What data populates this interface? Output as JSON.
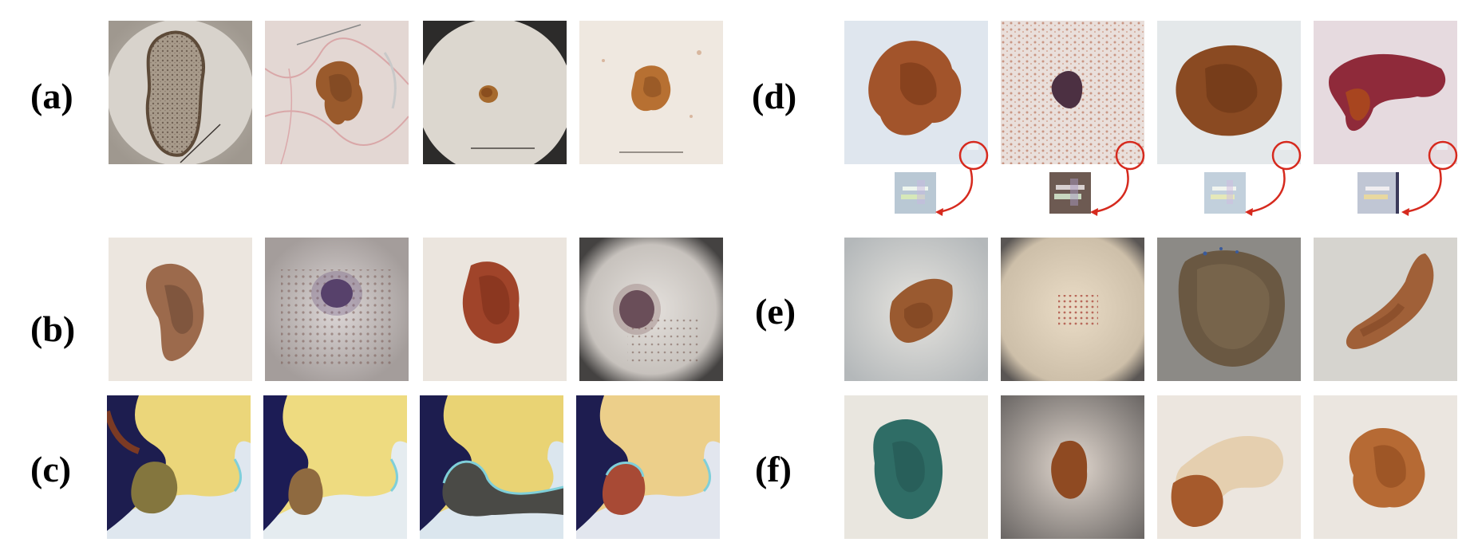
{
  "panels": [
    {
      "id": "a",
      "label": "(a)"
    },
    {
      "id": "b",
      "label": "(b)"
    },
    {
      "id": "c",
      "label": "(c)"
    },
    {
      "id": "d",
      "label": "(d)"
    },
    {
      "id": "e",
      "label": "(e)"
    },
    {
      "id": "f",
      "label": "(f)"
    }
  ],
  "colors": {
    "skin_light": "#f1ece6",
    "skin_pink": "#eadcd8",
    "lesion_brown": "#8a4a22",
    "lesion_dark": "#3d2a3f",
    "lesion_teal": "#2f6d66",
    "callout_red": "#d62a1e",
    "gen_yellow": "#e8d56a",
    "gen_navy": "#1c1c55"
  }
}
